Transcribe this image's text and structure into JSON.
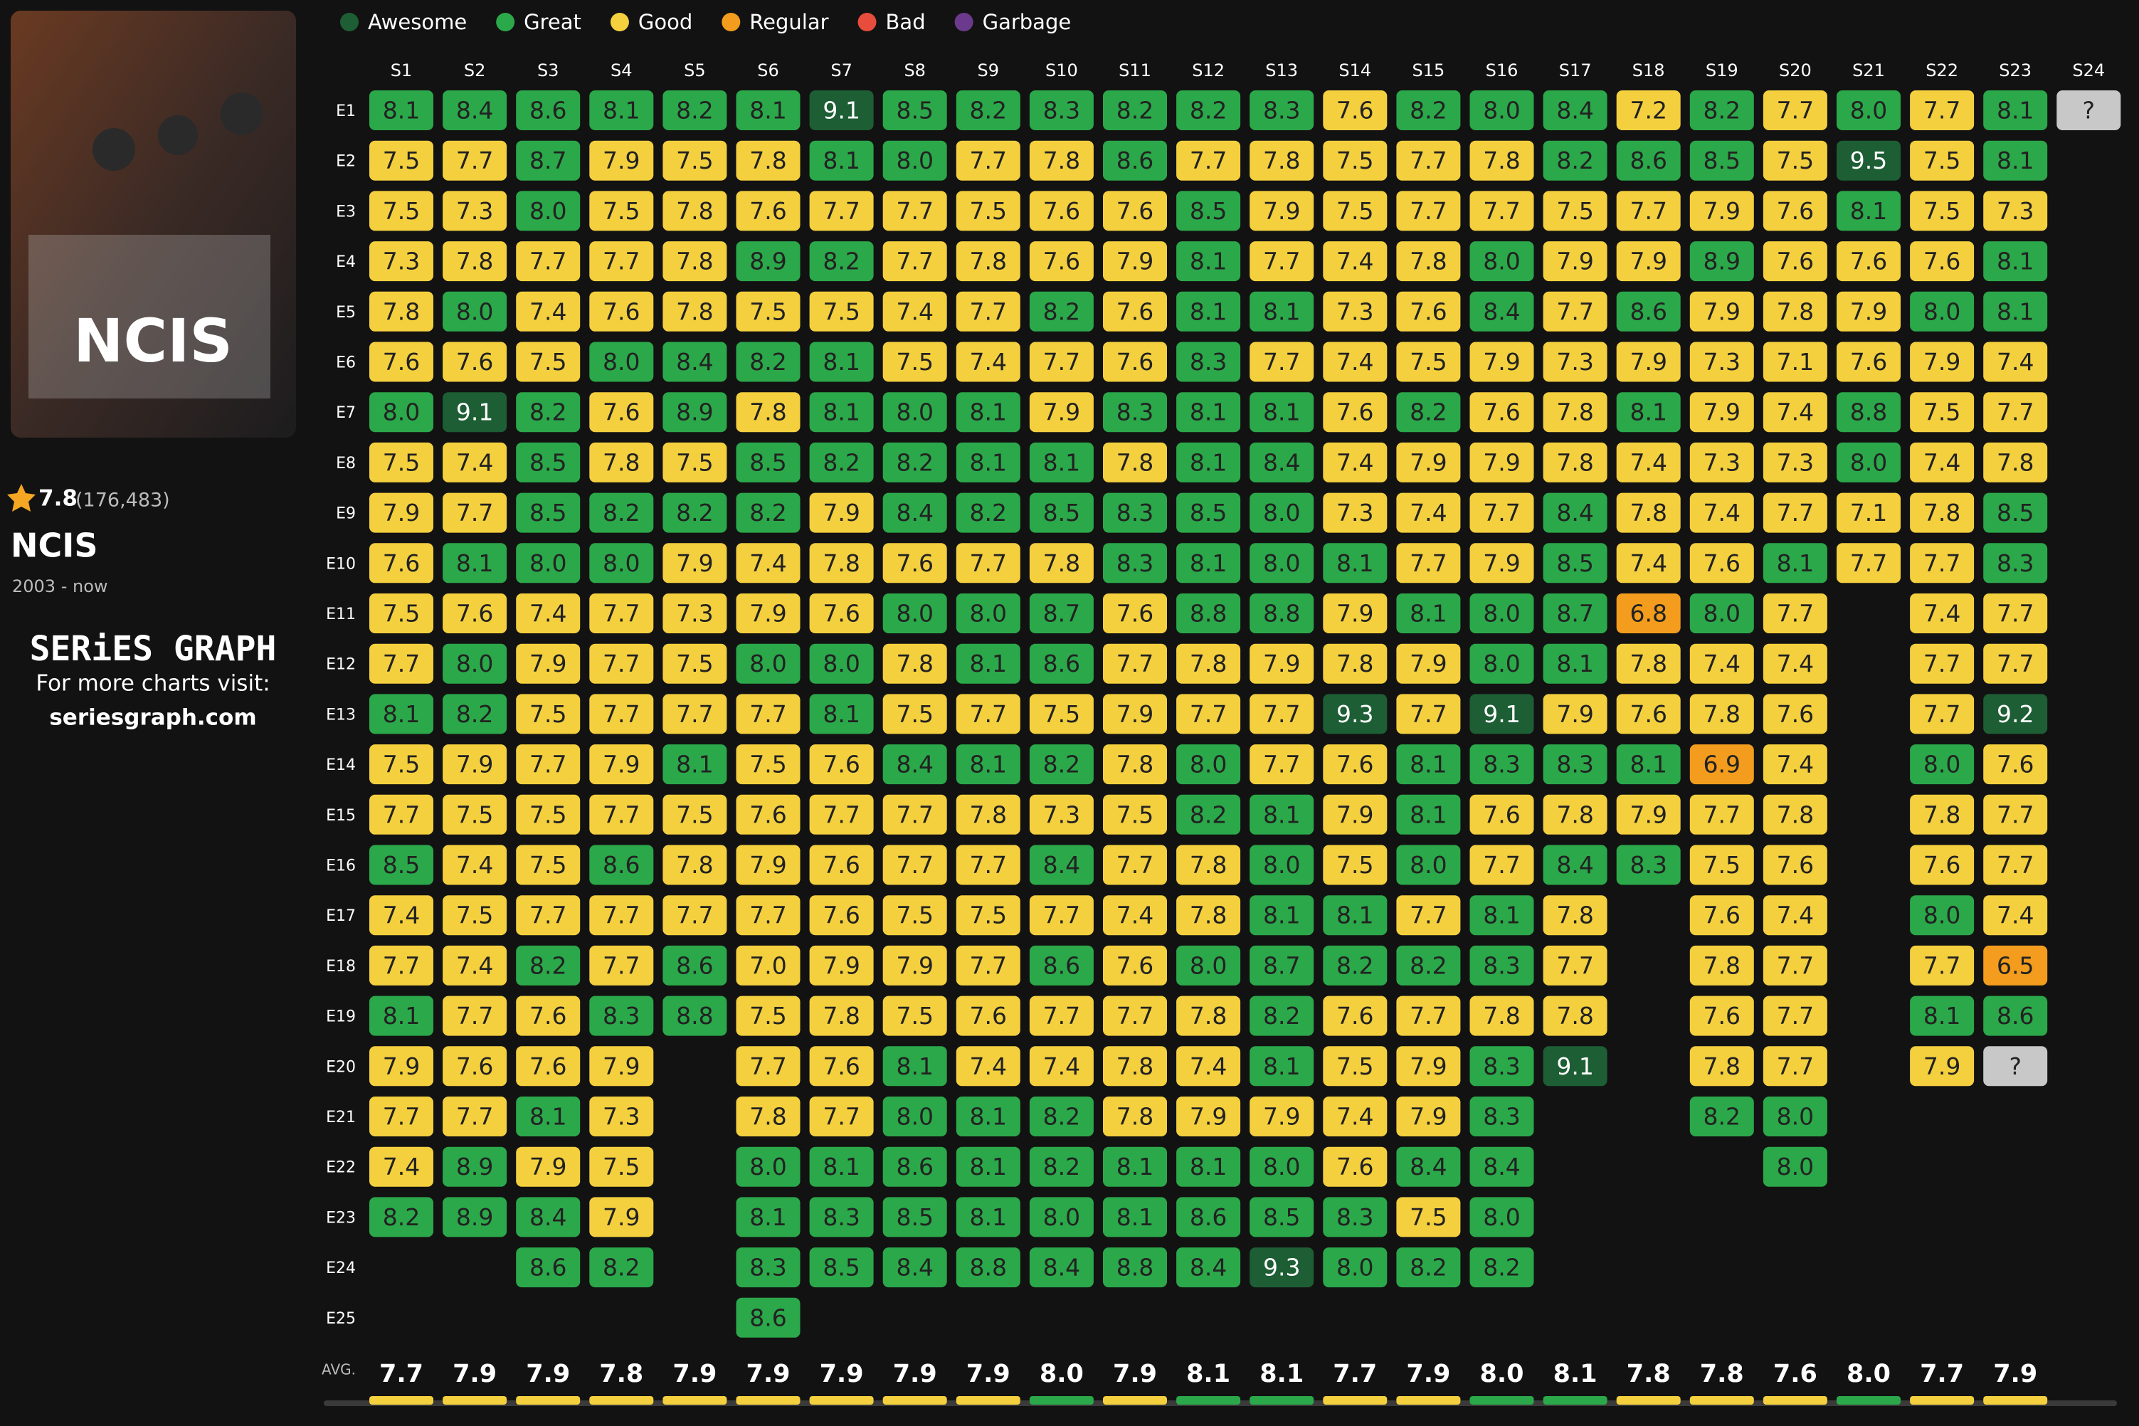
{
  "poster": {
    "title": "NCIS"
  },
  "show": {
    "rating": "7.8",
    "votes": "(176,483)",
    "title": "NCIS",
    "years": "2003 - now"
  },
  "brand": {
    "name": "SERiES GRAPH",
    "tagline": "For more charts visit:",
    "url": "seriesgraph.com"
  },
  "legend": [
    {
      "label": "Awesome",
      "color": "#1d5e34"
    },
    {
      "label": "Great",
      "color": "#2ba84a"
    },
    {
      "label": "Good",
      "color": "#f4d03f"
    },
    {
      "label": "Regular",
      "color": "#f39c1d"
    },
    {
      "label": "Bad",
      "color": "#e74c3c"
    },
    {
      "label": "Garbage",
      "color": "#6c3a8c"
    }
  ],
  "unknown_color": "#c8c8c8",
  "grid": {
    "seasons": [
      "S1",
      "S2",
      "S3",
      "S4",
      "S5",
      "S6",
      "S7",
      "S8",
      "S9",
      "S10",
      "S11",
      "S12",
      "S13",
      "S14",
      "S15",
      "S16",
      "S17",
      "S18",
      "S19",
      "S20",
      "S21",
      "S22",
      "S23",
      "S24"
    ],
    "episodes": [
      "E1",
      "E2",
      "E3",
      "E4",
      "E5",
      "E6",
      "E7",
      "E8",
      "E9",
      "E10",
      "E11",
      "E12",
      "E13",
      "E14",
      "E15",
      "E16",
      "E17",
      "E18",
      "E19",
      "E20",
      "E21",
      "E22",
      "E23",
      "E24",
      "E25"
    ],
    "ratings": [
      [
        "8.1",
        "8.4",
        "8.6",
        "8.1",
        "8.2",
        "8.1",
        "9.1",
        "8.5",
        "8.2",
        "8.3",
        "8.2",
        "8.2",
        "8.3",
        "7.6",
        "8.2",
        "8.0",
        "8.4",
        "7.2",
        "8.2",
        "7.7",
        "8.0",
        "7.7",
        "8.1",
        "?"
      ],
      [
        "7.5",
        "7.7",
        "8.7",
        "7.9",
        "7.5",
        "7.8",
        "8.1",
        "8.0",
        "7.7",
        "7.8",
        "8.6",
        "7.7",
        "7.8",
        "7.5",
        "7.7",
        "7.8",
        "8.2",
        "8.6",
        "8.5",
        "7.5",
        "9.5",
        "7.5",
        "8.1",
        null
      ],
      [
        "7.5",
        "7.3",
        "8.0",
        "7.5",
        "7.8",
        "7.6",
        "7.7",
        "7.7",
        "7.5",
        "7.6",
        "7.6",
        "8.5",
        "7.9",
        "7.5",
        "7.7",
        "7.7",
        "7.5",
        "7.7",
        "7.9",
        "7.6",
        "8.1",
        "7.5",
        "7.3",
        null
      ],
      [
        "7.3",
        "7.8",
        "7.7",
        "7.7",
        "7.8",
        "8.9",
        "8.2",
        "7.7",
        "7.8",
        "7.6",
        "7.9",
        "8.1",
        "7.7",
        "7.4",
        "7.8",
        "8.0",
        "7.9",
        "7.9",
        "8.9",
        "7.6",
        "7.6",
        "7.6",
        "8.1",
        null
      ],
      [
        "7.8",
        "8.0",
        "7.4",
        "7.6",
        "7.8",
        "7.5",
        "7.5",
        "7.4",
        "7.7",
        "8.2",
        "7.6",
        "8.1",
        "8.1",
        "7.3",
        "7.6",
        "8.4",
        "7.7",
        "8.6",
        "7.9",
        "7.8",
        "7.9",
        "8.0",
        "8.1",
        null
      ],
      [
        "7.6",
        "7.6",
        "7.5",
        "8.0",
        "8.4",
        "8.2",
        "8.1",
        "7.5",
        "7.4",
        "7.7",
        "7.6",
        "8.3",
        "7.7",
        "7.4",
        "7.5",
        "7.9",
        "7.3",
        "7.9",
        "7.3",
        "7.1",
        "7.6",
        "7.9",
        "7.4",
        null
      ],
      [
        "8.0",
        "9.1",
        "8.2",
        "7.6",
        "8.9",
        "7.8",
        "8.1",
        "8.0",
        "8.1",
        "7.9",
        "8.3",
        "8.1",
        "8.1",
        "7.6",
        "8.2",
        "7.6",
        "7.8",
        "8.1",
        "7.9",
        "7.4",
        "8.8",
        "7.5",
        "7.7",
        null
      ],
      [
        "7.5",
        "7.4",
        "8.5",
        "7.8",
        "7.5",
        "8.5",
        "8.2",
        "8.2",
        "8.1",
        "8.1",
        "7.8",
        "8.1",
        "8.4",
        "7.4",
        "7.9",
        "7.9",
        "7.8",
        "7.4",
        "7.3",
        "7.3",
        "8.0",
        "7.4",
        "7.8",
        null
      ],
      [
        "7.9",
        "7.7",
        "8.5",
        "8.2",
        "8.2",
        "8.2",
        "7.9",
        "8.4",
        "8.2",
        "8.5",
        "8.3",
        "8.5",
        "8.0",
        "7.3",
        "7.4",
        "7.7",
        "8.4",
        "7.8",
        "7.4",
        "7.7",
        "7.1",
        "7.8",
        "8.5",
        null
      ],
      [
        "7.6",
        "8.1",
        "8.0",
        "8.0",
        "7.9",
        "7.4",
        "7.8",
        "7.6",
        "7.7",
        "7.8",
        "8.3",
        "8.1",
        "8.0",
        "8.1",
        "7.7",
        "7.9",
        "8.5",
        "7.4",
        "7.6",
        "8.1",
        "7.7",
        "7.7",
        "8.3",
        null
      ],
      [
        "7.5",
        "7.6",
        "7.4",
        "7.7",
        "7.3",
        "7.9",
        "7.6",
        "8.0",
        "8.0",
        "8.7",
        "7.6",
        "8.8",
        "8.8",
        "7.9",
        "8.1",
        "8.0",
        "8.7",
        "6.8",
        "8.0",
        "7.7",
        null,
        "7.4",
        "7.7",
        null
      ],
      [
        "7.7",
        "8.0",
        "7.9",
        "7.7",
        "7.5",
        "8.0",
        "8.0",
        "7.8",
        "8.1",
        "8.6",
        "7.7",
        "7.8",
        "7.9",
        "7.8",
        "7.9",
        "8.0",
        "8.1",
        "7.8",
        "7.4",
        "7.4",
        null,
        "7.7",
        "7.7",
        null
      ],
      [
        "8.1",
        "8.2",
        "7.5",
        "7.7",
        "7.7",
        "7.7",
        "8.1",
        "7.5",
        "7.7",
        "7.5",
        "7.9",
        "7.7",
        "7.7",
        "9.3",
        "7.7",
        "9.1",
        "7.9",
        "7.6",
        "7.8",
        "7.6",
        null,
        "7.7",
        "9.2",
        null
      ],
      [
        "7.5",
        "7.9",
        "7.7",
        "7.9",
        "8.1",
        "7.5",
        "7.6",
        "8.4",
        "8.1",
        "8.2",
        "7.8",
        "8.0",
        "7.7",
        "7.6",
        "8.1",
        "8.3",
        "8.3",
        "8.1",
        "6.9",
        "7.4",
        null,
        "8.0",
        "7.6",
        null
      ],
      [
        "7.7",
        "7.5",
        "7.5",
        "7.7",
        "7.5",
        "7.6",
        "7.7",
        "7.7",
        "7.8",
        "7.3",
        "7.5",
        "8.2",
        "8.1",
        "7.9",
        "8.1",
        "7.6",
        "7.8",
        "7.9",
        "7.7",
        "7.8",
        null,
        "7.8",
        "7.7",
        null
      ],
      [
        "8.5",
        "7.4",
        "7.5",
        "8.6",
        "7.8",
        "7.9",
        "7.6",
        "7.7",
        "7.7",
        "8.4",
        "7.7",
        "7.8",
        "8.0",
        "7.5",
        "8.0",
        "7.7",
        "8.4",
        "8.3",
        "7.5",
        "7.6",
        null,
        "7.6",
        "7.7",
        null
      ],
      [
        "7.4",
        "7.5",
        "7.7",
        "7.7",
        "7.7",
        "7.7",
        "7.6",
        "7.5",
        "7.5",
        "7.7",
        "7.4",
        "7.8",
        "8.1",
        "8.1",
        "7.7",
        "8.1",
        "7.8",
        null,
        "7.6",
        "7.4",
        null,
        "8.0",
        "7.4",
        null
      ],
      [
        "7.7",
        "7.4",
        "8.2",
        "7.7",
        "8.6",
        "7.0",
        "7.9",
        "7.9",
        "7.7",
        "8.6",
        "7.6",
        "8.0",
        "8.7",
        "8.2",
        "8.2",
        "8.3",
        "7.7",
        null,
        "7.8",
        "7.7",
        null,
        "7.7",
        "6.5",
        null
      ],
      [
        "8.1",
        "7.7",
        "7.6",
        "8.3",
        "8.8",
        "7.5",
        "7.8",
        "7.5",
        "7.6",
        "7.7",
        "7.7",
        "7.8",
        "8.2",
        "7.6",
        "7.7",
        "7.8",
        "7.8",
        null,
        "7.6",
        "7.7",
        null,
        "8.1",
        "8.6",
        null
      ],
      [
        "7.9",
        "7.6",
        "7.6",
        "7.9",
        null,
        "7.7",
        "7.6",
        "8.1",
        "7.4",
        "7.4",
        "7.8",
        "7.4",
        "8.1",
        "7.5",
        "7.9",
        "8.3",
        "9.1",
        null,
        "7.8",
        "7.7",
        null,
        "7.9",
        "?",
        null
      ],
      [
        "7.7",
        "7.7",
        "8.1",
        "7.3",
        null,
        "7.8",
        "7.7",
        "8.0",
        "8.1",
        "8.2",
        "7.8",
        "7.9",
        "7.9",
        "7.4",
        "7.9",
        "8.3",
        null,
        null,
        "8.2",
        "8.0",
        null,
        null,
        null,
        null
      ],
      [
        "7.4",
        "8.9",
        "7.9",
        "7.5",
        null,
        "8.0",
        "8.1",
        "8.6",
        "8.1",
        "8.2",
        "8.1",
        "8.1",
        "8.0",
        "7.6",
        "8.4",
        "8.4",
        null,
        null,
        null,
        "8.0",
        null,
        null,
        null,
        null
      ],
      [
        "8.2",
        "8.9",
        "8.4",
        "7.9",
        null,
        "8.1",
        "8.3",
        "8.5",
        "8.1",
        "8.0",
        "8.1",
        "8.6",
        "8.5",
        "8.3",
        "7.5",
        "8.0",
        null,
        null,
        null,
        null,
        null,
        null,
        null,
        null
      ],
      [
        null,
        null,
        "8.6",
        "8.2",
        null,
        "8.3",
        "8.5",
        "8.4",
        "8.8",
        "8.4",
        "8.8",
        "8.4",
        "9.3",
        "8.0",
        "8.2",
        "8.2",
        null,
        null,
        null,
        null,
        null,
        null,
        null,
        null
      ],
      [
        null,
        null,
        null,
        null,
        null,
        "8.6",
        null,
        null,
        null,
        null,
        null,
        null,
        null,
        null,
        null,
        null,
        null,
        null,
        null,
        null,
        null,
        null,
        null,
        null
      ]
    ],
    "avg_label": "AVG.",
    "averages": [
      "7.7",
      "7.9",
      "7.9",
      "7.8",
      "7.9",
      "7.9",
      "7.9",
      "7.9",
      "7.9",
      "8.0",
      "7.9",
      "8.1",
      "8.1",
      "7.7",
      "7.9",
      "8.0",
      "8.1",
      "7.8",
      "7.8",
      "7.6",
      "8.0",
      "7.7",
      "7.9",
      null
    ]
  }
}
